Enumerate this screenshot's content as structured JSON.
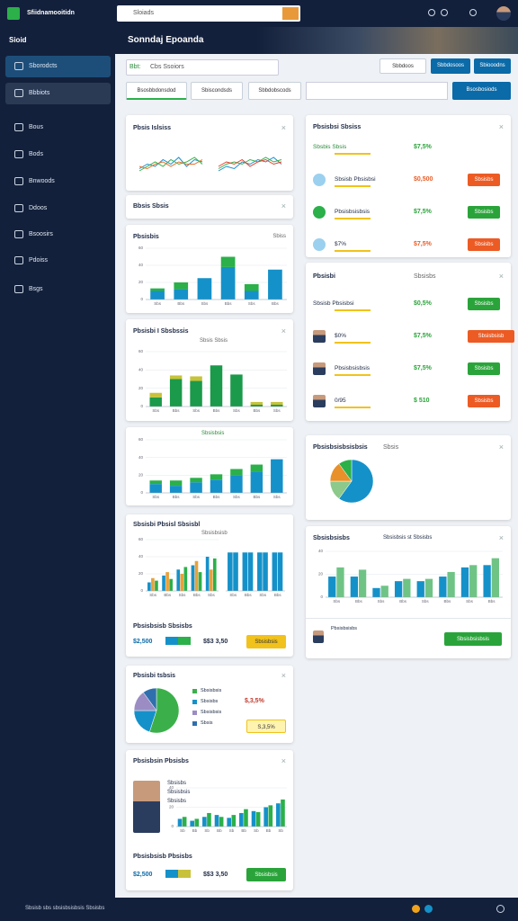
{
  "topbar": {
    "brand": "Sfiidnamooitidn",
    "search": "Sloiads"
  },
  "sidebar": {
    "title": "Sioid",
    "items": [
      "Sborodcts",
      "Bbbiots",
      "Bous",
      "Bods",
      "Bnwoods",
      "Ddoos",
      "Bsoosirs",
      "Pdoiss",
      "Bsgs"
    ]
  },
  "header": {
    "title": "Sonndaj Epoanda"
  },
  "toolbar": {
    "label": "Bbt:",
    "placeholder": "Cbs Ssoiors",
    "buttons": [
      "Sbbdoos",
      "Sbbdosoos",
      "Sbiooodns"
    ]
  },
  "tabs": {
    "items": [
      "Bsosbbdonsdod",
      "Sbiscondsds",
      "Sbbdobscods"
    ],
    "button": "Bsosbosiods"
  },
  "cards": {
    "trends": {
      "title": "Pbsis Islsiss"
    },
    "summary": {
      "title": "Bbsis Sbsis"
    },
    "sales": {
      "title": "Pbsisbis",
      "note": "Sbiss"
    },
    "growth": {
      "title": "Pbsisbi I Sbsbssis",
      "note": "Sbsis Sbsis"
    },
    "compare": {
      "note": "Sbsisbsis"
    },
    "revenue": {
      "title": "Sbsisbi Pbsisl Sbsisbl",
      "note": "Sbsisbsisb",
      "subtitle": "Pbsisbsisb Sbsisbs",
      "amount1": "$2,500",
      "amount2": "$$3 3,50",
      "button": "Sbsisbsis"
    },
    "share": {
      "title": "Pbsisbi tsbsis",
      "legend": [
        "Sbsisbsis",
        "Sbsisbs",
        "Sbsisbsis",
        "Sbsis"
      ],
      "amount": "$,3,5%",
      "button": "S,3,5%"
    },
    "team": {
      "title": "Pbsisbsin Pbsisbs",
      "lines": [
        "Sbsisbs",
        "Sbsisbsis",
        "Sbsisbs"
      ],
      "subtitle": "Pbsisbsisb Pbsisbs",
      "amount1": "$2,500",
      "amount2": "$$3 3,50",
      "button": "Sbsisbsis"
    }
  },
  "right": {
    "stats": {
      "title": "Pbsisbsi Sbsiss",
      "rows": [
        {
          "label": "Sbsbis Sbsis",
          "value": "$7,5%"
        },
        {
          "label": "Sbsisb Pbsisbsi",
          "value": "$0,500",
          "button": "Sbsisbs"
        },
        {
          "label": "Pbsisbsisbsis",
          "value": "$7,5%",
          "button": "Sbsisbs"
        },
        {
          "label": "$7%",
          "value": "$7,5%",
          "button": "Sbsisbs"
        }
      ]
    },
    "people": {
      "title": "Pbsisbi",
      "note": "Sbsisbs",
      "rows": [
        {
          "label": "Sbsisb Pbsisbsi",
          "value": "$0,5%",
          "button": "Sbsisbs"
        },
        {
          "label": "$0%",
          "value": "$7,5%",
          "button": "Sbsisbsisb"
        },
        {
          "label": "Pbsisbsisbsis",
          "value": "$7,5%",
          "button": "Sbsisbs"
        },
        {
          "label": "0/95",
          "value": "$ 510",
          "button": "Sbsisbs"
        }
      ]
    },
    "mix": {
      "title": "Pbsisbsisbsisbsis",
      "note": "Sbsis"
    },
    "perf": {
      "title": "Sbsisbsisbs",
      "note": "Sbsisbsis st Sbsisbs",
      "row": "Pbsisbsisbs",
      "button": "Sbsisbsisbsis"
    }
  },
  "footer": {
    "text": "Sbsisb sbs sbsisbsisbsis Sbsisbs"
  },
  "charts": {
    "line1": {
      "type": "line",
      "ylim": [
        0,
        10
      ],
      "series": [
        {
          "color": "#1a8fd1",
          "values": [
            3,
            5,
            4,
            7,
            5,
            8,
            4,
            7,
            6
          ]
        },
        {
          "color": "#3bb04a",
          "values": [
            2,
            4,
            6,
            4,
            7,
            5,
            6,
            8,
            5
          ]
        },
        {
          "color": "#e8702a",
          "values": [
            4,
            3,
            5,
            6,
            4,
            6,
            5,
            5,
            7
          ]
        }
      ]
    },
    "line2": {
      "type": "line",
      "ylim": [
        0,
        10
      ],
      "series": [
        {
          "color": "#1a8fd1",
          "values": [
            2,
            4,
            3,
            6,
            5,
            7,
            6,
            8,
            5
          ]
        },
        {
          "color": "#3bb04a",
          "values": [
            3,
            5,
            6,
            5,
            7,
            6,
            8,
            6,
            7
          ]
        },
        {
          "color": "#e8402a",
          "values": [
            4,
            6,
            5,
            7,
            4,
            6,
            7,
            5,
            6
          ]
        }
      ]
    },
    "sales": {
      "type": "bar",
      "stacked": true,
      "ylim": [
        0,
        60
      ],
      "yticks": [
        0,
        20,
        40,
        60
      ],
      "categories": [
        "Sbs",
        "Bbs",
        "Sbs",
        "Bbs",
        "Sbs",
        "Bbs"
      ],
      "series": [
        {
          "color": "#1591c9",
          "values": [
            10,
            12,
            25,
            38,
            10,
            35
          ]
        },
        {
          "color": "#2bb04a",
          "values": [
            3,
            8,
            0,
            12,
            8,
            0
          ]
        }
      ]
    },
    "growth": {
      "type": "bar",
      "stacked": true,
      "ylim": [
        0,
        60
      ],
      "yticks": [
        0,
        20,
        40,
        60
      ],
      "categories": [
        "Sbs",
        "Bbs",
        "Sbs",
        "Bbs",
        "Sbs",
        "Bbs",
        "Sbs"
      ],
      "series": [
        {
          "color": "#1a9a4a",
          "values": [
            10,
            30,
            28,
            45,
            35,
            2,
            2
          ]
        },
        {
          "color": "#c8c23a",
          "values": [
            5,
            4,
            5,
            0,
            0,
            3,
            3
          ]
        }
      ]
    },
    "compare": {
      "type": "bar",
      "stacked": true,
      "ylim": [
        0,
        60
      ],
      "yticks": [
        0,
        20,
        40,
        60
      ],
      "categories": [
        "Sbs",
        "Bbs",
        "Sbs",
        "Bbs",
        "Sbs",
        "Bbs",
        "Sbs"
      ],
      "series": [
        {
          "color": "#1591c9",
          "values": [
            10,
            8,
            12,
            15,
            20,
            24,
            38
          ]
        },
        {
          "color": "#2bb04a",
          "values": [
            4,
            6,
            5,
            6,
            7,
            8,
            0
          ]
        }
      ]
    },
    "rev1": {
      "type": "bar",
      "ylim": [
        0,
        60
      ],
      "yticks": [
        0,
        20,
        40,
        60
      ],
      "categories": [
        "Sbs",
        "Bbs",
        "Sbs",
        "Bbs",
        "Sbs"
      ],
      "series": [
        {
          "color": "#1591c9",
          "values": [
            10,
            18,
            25,
            30,
            40
          ]
        },
        {
          "color": "#e6a23c",
          "values": [
            15,
            22,
            20,
            35,
            25
          ]
        },
        {
          "color": "#2bb04a",
          "values": [
            12,
            14,
            28,
            22,
            38
          ]
        }
      ]
    },
    "rev2": {
      "type": "bar",
      "ylim": [
        0,
        60
      ],
      "categories": [
        "Sbs",
        "Bbs",
        "Sbs",
        "Bbs"
      ],
      "series": [
        {
          "color": "#1591c9",
          "values": [
            45,
            45,
            45,
            45
          ]
        },
        {
          "color": "#1591c9",
          "values": [
            45,
            45,
            45,
            45
          ]
        }
      ]
    },
    "share": {
      "type": "pie",
      "values": [
        55,
        20,
        15,
        10
      ],
      "colors": [
        "#3bb04a",
        "#1591c9",
        "#9b8cc4",
        "#2f6fae"
      ]
    },
    "team": {
      "type": "bar",
      "ylim": [
        0,
        40
      ],
      "yticks": [
        0,
        20,
        40
      ],
      "categories": [
        "Sb",
        "Bb",
        "Sb",
        "Bb",
        "Sb",
        "Bb",
        "Sb",
        "Bb",
        "Sb"
      ],
      "series": [
        {
          "color": "#1591c9",
          "values": [
            8,
            6,
            10,
            12,
            9,
            14,
            16,
            20,
            24
          ]
        },
        {
          "color": "#2bb04a",
          "values": [
            10,
            8,
            14,
            10,
            12,
            18,
            15,
            22,
            28
          ]
        }
      ]
    },
    "mix": {
      "type": "pie",
      "values": [
        60,
        15,
        15,
        10
      ],
      "colors": [
        "#1591c9",
        "#8cc98a",
        "#e8902a",
        "#2bb04a"
      ]
    },
    "perf": {
      "type": "bar",
      "ylim": [
        0,
        40
      ],
      "yticks": [
        0,
        20,
        40
      ],
      "categories": [
        "Sbs",
        "Bbs",
        "Sbs",
        "Bbs",
        "Sbs",
        "Bbs",
        "Sbs",
        "Bbs"
      ],
      "series": [
        {
          "color": "#1591c9",
          "values": [
            18,
            18,
            8,
            14,
            14,
            18,
            26,
            28
          ]
        },
        {
          "color": "#6fc485",
          "values": [
            26,
            24,
            10,
            16,
            16,
            22,
            28,
            34
          ]
        }
      ]
    }
  }
}
